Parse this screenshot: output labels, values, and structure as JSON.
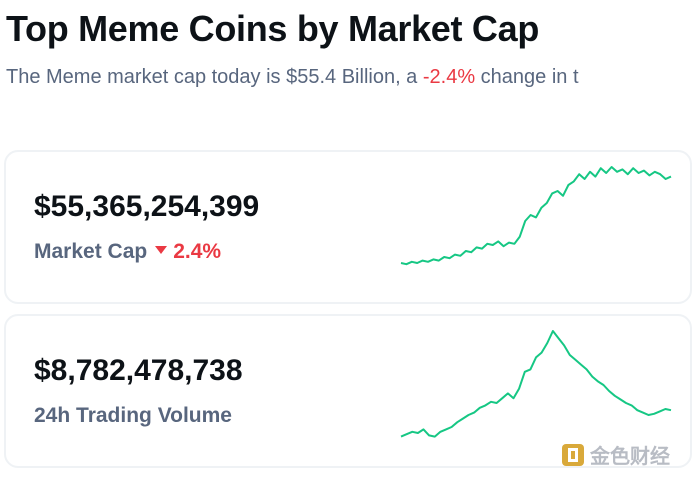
{
  "header": {
    "title": "Top Meme Coins by Market Cap",
    "subtitle_prefix": "The Meme market cap today is $55.4 Billion, a ",
    "subtitle_change": "-2.4%",
    "subtitle_suffix": " change in t"
  },
  "cards": [
    {
      "value": "$55,365,254,399",
      "label": "Market Cap",
      "change": "2.4%",
      "change_direction": "down",
      "sparkline": [
        0.2,
        0.19,
        0.21,
        0.2,
        0.22,
        0.21,
        0.23,
        0.22,
        0.25,
        0.24,
        0.27,
        0.26,
        0.3,
        0.29,
        0.33,
        0.32,
        0.36,
        0.35,
        0.38,
        0.34,
        0.37,
        0.36,
        0.42,
        0.55,
        0.6,
        0.58,
        0.66,
        0.7,
        0.78,
        0.8,
        0.76,
        0.85,
        0.88,
        0.94,
        0.9,
        0.96,
        0.92,
        0.99,
        0.95,
        1.0,
        0.96,
        0.98,
        0.94,
        0.99,
        0.95,
        0.97,
        0.93,
        0.96,
        0.94,
        0.9,
        0.92
      ]
    },
    {
      "value": "$8,782,478,738",
      "label": "24h Trading Volume",
      "sparkline": [
        0.12,
        0.14,
        0.16,
        0.15,
        0.18,
        0.13,
        0.12,
        0.16,
        0.18,
        0.2,
        0.24,
        0.27,
        0.3,
        0.32,
        0.36,
        0.38,
        0.41,
        0.4,
        0.44,
        0.48,
        0.44,
        0.52,
        0.66,
        0.68,
        0.78,
        0.82,
        0.9,
        1.0,
        0.94,
        0.88,
        0.8,
        0.76,
        0.72,
        0.68,
        0.62,
        0.58,
        0.55,
        0.5,
        0.46,
        0.43,
        0.4,
        0.38,
        0.34,
        0.32,
        0.3,
        0.31,
        0.33,
        0.35,
        0.34
      ]
    }
  ],
  "colors": {
    "accent_green": "#16c784",
    "negative_red": "#ea3943",
    "muted_text": "#58667e"
  },
  "watermark": {
    "text": "金色财经"
  }
}
